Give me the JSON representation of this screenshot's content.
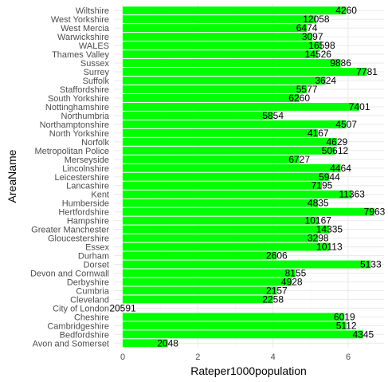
{
  "colors": {
    "bar": "#00ff00",
    "grid_major": "#ebebeb",
    "grid_minor": "#f5f5f5",
    "background": "#ffffff"
  },
  "chart_data": {
    "type": "bar",
    "orientation": "horizontal",
    "xlabel": "Rateper1000population",
    "ylabel": "AreaName",
    "xlim": [
      -0.25,
      6.75
    ],
    "xticks": [
      0,
      2,
      4,
      6
    ],
    "grid": true,
    "legend": "none",
    "categories": [
      "Avon and Somerset",
      "Bedfordshire",
      "Cambridgeshire",
      "Cheshire",
      "City of London",
      "Cleveland",
      "Cumbria",
      "Derbyshire",
      "Devon and Cornwall",
      "Dorset",
      "Durham",
      "Essex",
      "Gloucestershire",
      "Greater Manchester",
      "Hampshire",
      "Hertfordshire",
      "Humberside",
      "Kent",
      "Lancashire",
      "Leicestershire",
      "Lincolnshire",
      "Merseyside",
      "Metropolitan Police",
      "Norfolk",
      "North Yorkshire",
      "Northamptonshire",
      "Northumbria",
      "Nottinghamshire",
      "South Yorkshire",
      "Staffordshire",
      "Suffolk",
      "Surrey",
      "Sussex",
      "Thames Valley",
      "WALES",
      "Warwickshire",
      "West Mercia",
      "West Yorkshire",
      "Wiltshire"
    ],
    "values": [
      1.2,
      6.4,
      5.95,
      5.9,
      0,
      4.0,
      4.1,
      4.5,
      4.6,
      6.6,
      4.1,
      5.5,
      5.2,
      5.5,
      5.2,
      6.7,
      5.2,
      6.1,
      5.3,
      5.5,
      5.8,
      4.7,
      5.65,
      5.7,
      5.2,
      5.95,
      4.0,
      6.3,
      4.7,
      4.9,
      5.4,
      6.5,
      5.8,
      5.2,
      5.3,
      5.05,
      4.9,
      5.15,
      5.95
    ],
    "labels": [
      "2048",
      "4345",
      "5112",
      "6019",
      "20591",
      "2258",
      "2157",
      "4928",
      "8155",
      "5133",
      "2606",
      "10113",
      "3298",
      "14335",
      "10167",
      "7963",
      "4835",
      "11363",
      "7195",
      "5944",
      "4464",
      "6727",
      "50612",
      "4629",
      "4167",
      "4507",
      "5854",
      "7401",
      "6260",
      "5577",
      "3624",
      "7781",
      "9886",
      "14526",
      "16598",
      "3097",
      "6474",
      "12058",
      "4260"
    ]
  }
}
